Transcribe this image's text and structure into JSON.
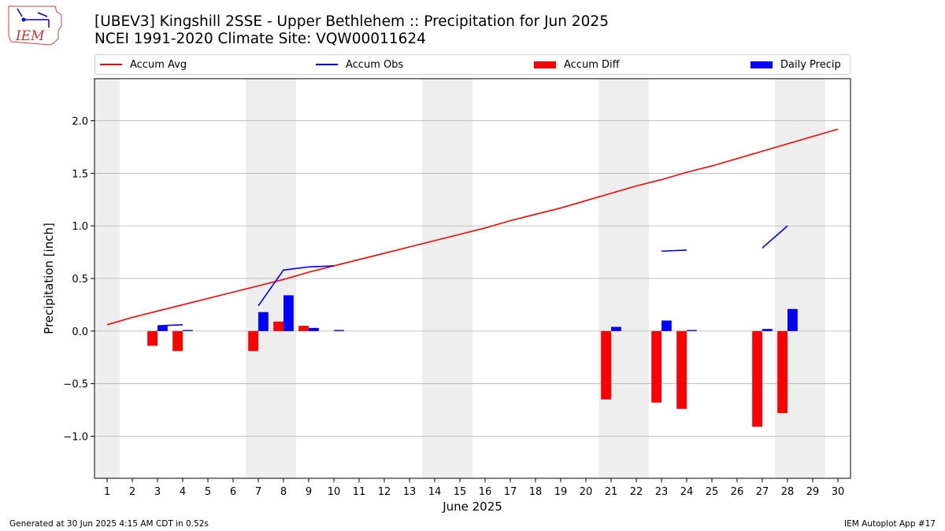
{
  "logo": {
    "text": "IEM"
  },
  "title": {
    "line1": "[UBEV3] Kingshill 2SSE - Upper Bethlehem :: Precipitation for Jun 2025",
    "line2": "NCEI 1991-2020 Climate Site: VQW00011624"
  },
  "legend": {
    "accum_avg": "Accum Avg",
    "accum_obs": "Accum Obs",
    "accum_diff": "Accum Diff",
    "daily_precip": "Daily Precip"
  },
  "colors": {
    "accum_avg": "#ff0000",
    "accum_obs": "#0000ff",
    "accum_diff": "#ff0000",
    "daily_precip": "#0000ff",
    "weekend_shade": "#eeeeee",
    "grid": "#b0b0b0"
  },
  "chart_data": {
    "type": "bar",
    "xlabel": "June 2025",
    "ylabel": "Precipitation [inch]",
    "ylim": [
      -1.4,
      2.4
    ],
    "yticks": [
      -1.0,
      -0.5,
      0.0,
      0.5,
      1.0,
      1.5,
      2.0
    ],
    "ytick_labels": [
      "−1.0",
      "−0.5",
      "0.0",
      "0.5",
      "1.0",
      "1.5",
      "2.0"
    ],
    "xlim": [
      0.5,
      30.5
    ],
    "days": [
      1,
      2,
      3,
      4,
      5,
      6,
      7,
      8,
      9,
      10,
      11,
      12,
      13,
      14,
      15,
      16,
      17,
      18,
      19,
      20,
      21,
      22,
      23,
      24,
      25,
      26,
      27,
      28,
      29,
      30
    ],
    "weekend_days": [
      1,
      7,
      8,
      14,
      15,
      21,
      22,
      28,
      29
    ],
    "grid": "horizontal",
    "accum_avg": [
      0.06,
      0.13,
      0.19,
      0.25,
      0.31,
      0.37,
      0.43,
      0.49,
      0.56,
      0.62,
      0.68,
      0.74,
      0.8,
      0.86,
      0.92,
      0.98,
      1.05,
      1.11,
      1.17,
      1.24,
      1.31,
      1.38,
      1.44,
      1.51,
      1.57,
      1.64,
      1.71,
      1.78,
      1.85,
      1.92
    ],
    "accum_obs_segments": [
      [
        [
          3,
          0.05
        ],
        [
          4,
          0.06
        ]
      ],
      [
        [
          7,
          0.24
        ],
        [
          8,
          0.58
        ],
        [
          9,
          0.61
        ],
        [
          10,
          0.62
        ]
      ],
      [
        [
          23,
          0.76
        ],
        [
          24,
          0.77
        ]
      ],
      [
        [
          27,
          0.79
        ],
        [
          28,
          1.0
        ]
      ]
    ],
    "accum_diff": [
      {
        "day": 3,
        "value": -0.14
      },
      {
        "day": 4,
        "value": -0.19
      },
      {
        "day": 7,
        "value": -0.19
      },
      {
        "day": 8,
        "value": 0.09
      },
      {
        "day": 9,
        "value": 0.05
      },
      {
        "day": 21,
        "value": -0.65
      },
      {
        "day": 23,
        "value": -0.68
      },
      {
        "day": 24,
        "value": -0.74
      },
      {
        "day": 27,
        "value": -0.91
      },
      {
        "day": 28,
        "value": -0.78
      }
    ],
    "daily_precip": [
      {
        "day": 3,
        "value": 0.05
      },
      {
        "day": 4,
        "value": 0.01
      },
      {
        "day": 7,
        "value": 0.18
      },
      {
        "day": 8,
        "value": 0.34
      },
      {
        "day": 9,
        "value": 0.03
      },
      {
        "day": 10,
        "value": 0.01
      },
      {
        "day": 21,
        "value": 0.04
      },
      {
        "day": 23,
        "value": 0.1
      },
      {
        "day": 24,
        "value": 0.01
      },
      {
        "day": 27,
        "value": 0.02
      },
      {
        "day": 28,
        "value": 0.21
      }
    ]
  },
  "footer": {
    "generated": "Generated at 30 Jun 2025 4:15 AM CDT in 0.52s",
    "app": "IEM Autoplot App #17"
  }
}
